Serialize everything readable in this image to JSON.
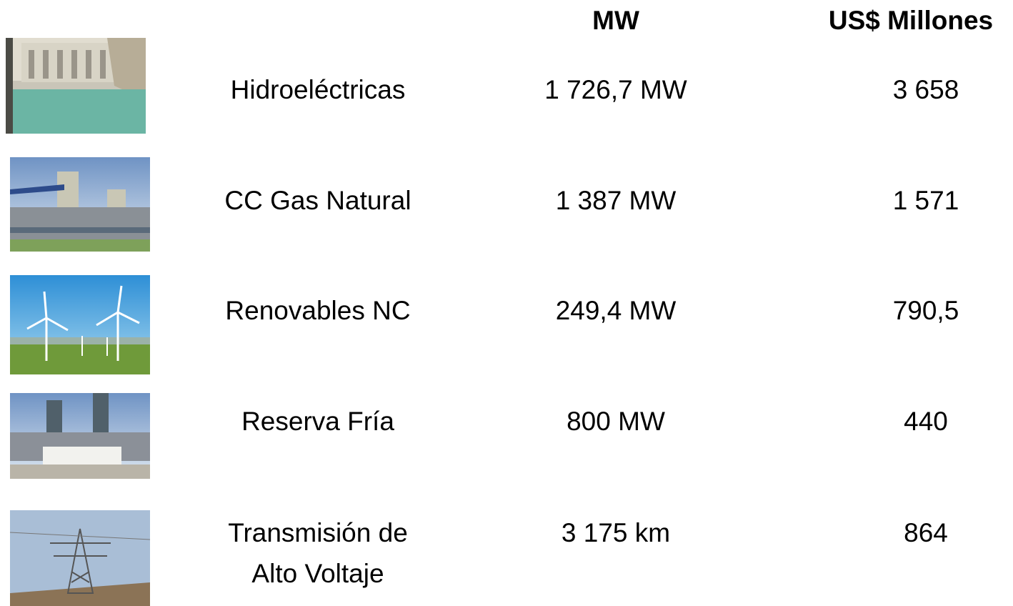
{
  "header": {
    "col_mw": "MW",
    "col_usd": "US$ Millones"
  },
  "table": {
    "rows": [
      {
        "label": [
          "Hidroeléctricas"
        ],
        "mw": "1 726,7 MW",
        "usd": "3 658"
      },
      {
        "label": [
          "CC Gas Natural"
        ],
        "mw": "1 387 MW",
        "usd": "1 571"
      },
      {
        "label": [
          "Renovables NC"
        ],
        "mw": "249,4 MW",
        "usd": "790,5"
      },
      {
        "label": [
          "Reserva Fría"
        ],
        "mw": "800 MW",
        "usd": "440"
      },
      {
        "label": [
          "Transmisión de",
          "Alto Voltaje"
        ],
        "mw": "3 175 km",
        "usd": "864"
      }
    ]
  }
}
